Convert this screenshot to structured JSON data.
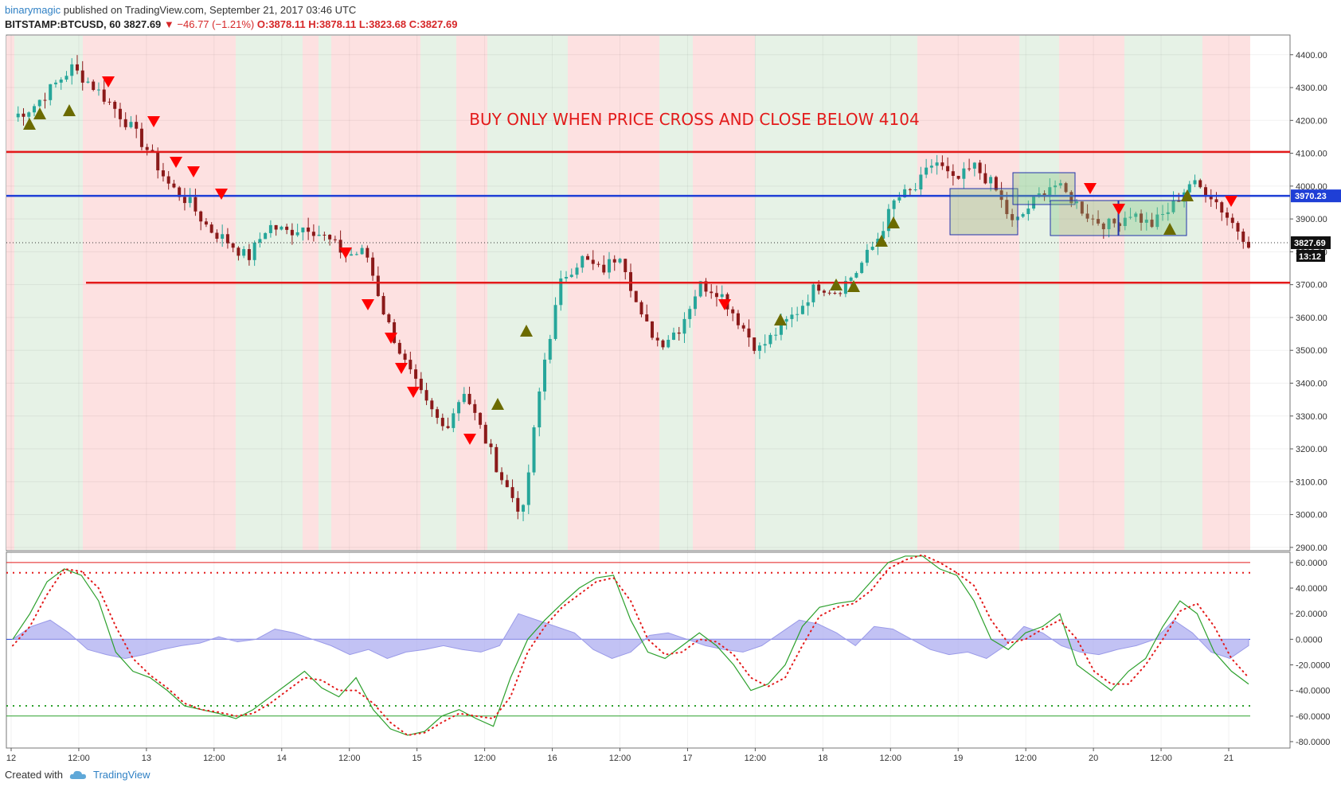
{
  "header": {
    "author": "binarymagic",
    "published": "published on TradingView.com, September 21, 2017 03:46 UTC",
    "symbol": "BITSTAMP:BTCUSD, 60",
    "last": "3827.69",
    "arrow_icon": "down-triangle-icon",
    "change": "−46.77 (−1.21%)",
    "open": "O:3878.11",
    "high": "H:3878.11",
    "low": "L:3823.68",
    "close": "C:3827.69"
  },
  "footer": {
    "created_with": "Created with",
    "brand": "TradingView",
    "icon": "tradingview-cloud-icon"
  },
  "colors": {
    "bull": "#26a69a",
    "bear": "#8b1a1a",
    "sell_marker": "#ff0000",
    "buy_marker": "#6b6b00",
    "red_level": "#e31a1a",
    "blue_level": "#1f3fd6",
    "green_bg": "#e6f2e6",
    "red_bg": "#fde1e1"
  },
  "chart_data": [
    {
      "type": "candlestick",
      "title": "BITSTAMP:BTCUSD, 60",
      "annotation": "BUY ONLY WHEN PRICE CROSS AND CLOSE BELOW 4104",
      "x_tick_labels": [
        "12",
        "12:00",
        "13",
        "12:00",
        "14",
        "12:00",
        "15",
        "12:00",
        "16",
        "12:00",
        "17",
        "12:00",
        "18",
        "12:00",
        "19",
        "12:00",
        "20",
        "12:00",
        "21"
      ],
      "y_tick_labels": [
        "4400.00",
        "4300.00",
        "4200.00",
        "4100.00",
        "4000.00",
        "3900.00",
        "3800.00",
        "3700.00",
        "3600.00",
        "3500.00",
        "3400.00",
        "3300.00",
        "3200.00",
        "3100.00",
        "3000.00",
        "2900.00"
      ],
      "ylim": [
        2890,
        4460
      ],
      "horizontal_levels": [
        {
          "price": 4104,
          "color": "red"
        },
        {
          "price": 3970.23,
          "color": "blue",
          "label": "3970.23"
        },
        {
          "price": 3706,
          "color": "red"
        }
      ],
      "last_price_label": "3827.69",
      "countdown_label": "13:12",
      "close_path": [
        4210,
        4240,
        4300,
        4360,
        4310,
        4250,
        4180,
        4100,
        4000,
        3950,
        3870,
        3830,
        3780,
        3880,
        3860,
        3880,
        3840,
        3790,
        3800,
        3600,
        3460,
        3340,
        3260,
        3380,
        3240,
        3100,
        3000,
        3440,
        3720,
        3780,
        3740,
        3800,
        3600,
        3520,
        3570,
        3700,
        3680,
        3590,
        3500,
        3560,
        3620,
        3700,
        3680,
        3740,
        3830,
        3960,
        3990,
        4080,
        4010,
        4060,
        4000,
        3880,
        3950,
        4010,
        3960,
        3900,
        3880,
        3920,
        3880,
        3930,
        4010,
        3980,
        3900,
        3830
      ],
      "sell_markers": [
        "12 ~17:00",
        "13 ~00:00",
        "13 ~08:00",
        "13 ~12:00",
        "13 ~20:00",
        "14 ~17:00",
        "14 ~23:00",
        "15 ~04:00",
        "15 ~07:00",
        "15 ~09:00",
        "15 ~21:00",
        "17 ~10:00",
        "19 ~18:00",
        "20 ~05:00",
        "21 ~00:00"
      ],
      "buy_markers": [
        "12 ~05:00",
        "12 ~07:00",
        "12 ~13:00",
        "16 ~00:00",
        "16 ~05:00",
        "17 ~23:00",
        "18 ~03:00",
        "18 ~05:00",
        "18 ~16:00",
        "18 ~18:00",
        "20 ~19:00",
        "20 ~23:00"
      ],
      "background_bands": "alternating green (uptrend) and red (downtrend) vertical bands",
      "rectangles": 4
    },
    {
      "type": "line",
      "y_tick_labels": [
        "60.0000",
        "40.0000",
        "20.0000",
        "0.0000",
        "-20.0000",
        "-40.0000",
        "-60.0000",
        "-80.0000"
      ],
      "ylim": [
        -85,
        68
      ],
      "reference_lines": [
        60,
        52,
        0,
        -52,
        -60
      ],
      "series": [
        {
          "color": "green",
          "values": [
            0,
            20,
            45,
            55,
            50,
            30,
            -10,
            -25,
            -30,
            -40,
            -52,
            -55,
            -58,
            -62,
            -55,
            -45,
            -35,
            -25,
            -38,
            -45,
            -30,
            -55,
            -70,
            -75,
            -72,
            -60,
            -55,
            -62,
            -68,
            -30,
            0,
            15,
            28,
            40,
            48,
            50,
            15,
            -10,
            -15,
            -5,
            5,
            -5,
            -20,
            -40,
            -35,
            -20,
            10,
            25,
            28,
            30,
            45,
            60,
            65,
            65,
            55,
            50,
            30,
            0,
            -8,
            5,
            10,
            20,
            -20,
            -30,
            -40,
            -25,
            -15,
            10,
            30,
            20,
            -10,
            -25,
            -35
          ]
        },
        {
          "color": "red",
          "style": "dotted",
          "values": [
            -5,
            10,
            35,
            55,
            53,
            40,
            10,
            -15,
            -28,
            -38,
            -50,
            -55,
            -57,
            -60,
            -58,
            -50,
            -40,
            -30,
            -32,
            -40,
            -40,
            -50,
            -65,
            -75,
            -73,
            -65,
            -58,
            -60,
            -62,
            -45,
            -10,
            10,
            25,
            35,
            45,
            48,
            30,
            0,
            -12,
            -10,
            0,
            -2,
            -12,
            -30,
            -37,
            -30,
            -5,
            18,
            25,
            28,
            38,
            55,
            62,
            66,
            60,
            52,
            42,
            15,
            -3,
            0,
            8,
            15,
            0,
            -25,
            -35,
            -35,
            -20,
            0,
            22,
            28,
            10,
            -15,
            -30
          ]
        },
        {
          "color": "lavender-area",
          "values": [
            0,
            10,
            15,
            5,
            -8,
            -12,
            -15,
            -12,
            -8,
            -5,
            -3,
            2,
            -2,
            0,
            8,
            5,
            0,
            -5,
            -12,
            -8,
            -15,
            -10,
            -8,
            -5,
            -8,
            -10,
            -5,
            20,
            15,
            10,
            5,
            -8,
            -15,
            -10,
            3,
            5,
            0,
            -5,
            -8,
            -10,
            -5,
            5,
            15,
            12,
            5,
            -5,
            10,
            8,
            0,
            -8,
            -12,
            -10,
            -15,
            -5,
            10,
            5,
            -5,
            -10,
            -12,
            -8,
            -5,
            0,
            15,
            5,
            -10,
            -15,
            -5
          ]
        }
      ]
    }
  ]
}
